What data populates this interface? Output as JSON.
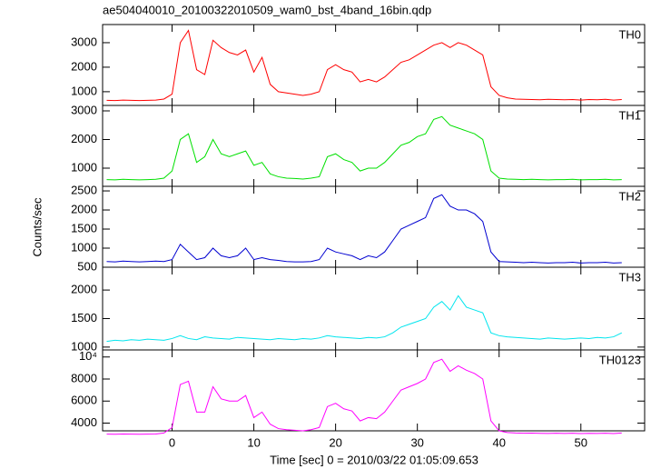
{
  "chart_data": [
    {
      "type": "line",
      "title": "ae504040010_20100322010509_wam0_bst_4band_16bin.qdp",
      "x": [
        -8,
        -7,
        -6,
        -5,
        -4,
        -3,
        -2,
        -1,
        0,
        1,
        2,
        3,
        4,
        5,
        6,
        7,
        8,
        9,
        10,
        11,
        12,
        13,
        14,
        15,
        16,
        17,
        18,
        19,
        20,
        21,
        22,
        23,
        24,
        25,
        26,
        27,
        28,
        29,
        30,
        31,
        32,
        33,
        34,
        35,
        36,
        37,
        38,
        39,
        40,
        41,
        42,
        43,
        44,
        45,
        46,
        47,
        48,
        49,
        50,
        51,
        52,
        53,
        54,
        55
      ],
      "series": [
        {
          "name": "TH0",
          "color": "#ff0000",
          "values": [
            650,
            640,
            660,
            650,
            640,
            650,
            660,
            700,
            900,
            3000,
            3500,
            1900,
            1700,
            3100,
            2800,
            2600,
            2500,
            2700,
            1800,
            2400,
            1300,
            1000,
            950,
            900,
            850,
            900,
            1000,
            1900,
            2100,
            1900,
            1800,
            1400,
            1500,
            1400,
            1600,
            1900,
            2200,
            2300,
            2500,
            2700,
            2900,
            3000,
            2800,
            3000,
            2900,
            2700,
            2500,
            1200,
            850,
            750,
            700,
            690,
            680,
            670,
            690,
            680,
            670,
            680,
            660,
            680,
            670,
            690,
            660,
            680
          ]
        }
      ],
      "xlim": [
        -8.5,
        57.8
      ],
      "ylim": [
        440,
        3740
      ],
      "yticks": [
        1000,
        2000,
        3000
      ]
    },
    {
      "type": "line",
      "x": [
        -8,
        -7,
        -6,
        -5,
        -4,
        -3,
        -2,
        -1,
        0,
        1,
        2,
        3,
        4,
        5,
        6,
        7,
        8,
        9,
        10,
        11,
        12,
        13,
        14,
        15,
        16,
        17,
        18,
        19,
        20,
        21,
        22,
        23,
        24,
        25,
        26,
        27,
        28,
        29,
        30,
        31,
        32,
        33,
        34,
        35,
        36,
        37,
        38,
        39,
        40,
        41,
        42,
        43,
        44,
        45,
        46,
        47,
        48,
        49,
        50,
        51,
        52,
        53,
        54,
        55
      ],
      "series": [
        {
          "name": "TH1",
          "color": "#00e000",
          "values": [
            600,
            590,
            610,
            600,
            590,
            600,
            610,
            650,
            900,
            2000,
            2200,
            1200,
            1400,
            2000,
            1500,
            1400,
            1500,
            1600,
            1100,
            1200,
            800,
            700,
            650,
            640,
            620,
            650,
            700,
            1400,
            1500,
            1300,
            1200,
            900,
            1000,
            1000,
            1200,
            1500,
            1800,
            1900,
            2100,
            2200,
            2700,
            2800,
            2500,
            2400,
            2300,
            2200,
            2000,
            900,
            650,
            620,
            610,
            600,
            610,
            600,
            590,
            600,
            600,
            610,
            590,
            600,
            600,
            610,
            590,
            600
          ]
        }
      ],
      "xlim": [
        -8.5,
        57.8
      ],
      "ylim": [
        365,
        3190
      ],
      "yticks": [
        1000,
        2000,
        3000
      ]
    },
    {
      "type": "line",
      "y_label": "Counts/sec",
      "x": [
        -8,
        -7,
        -6,
        -5,
        -4,
        -3,
        -2,
        -1,
        0,
        1,
        2,
        3,
        4,
        5,
        6,
        7,
        8,
        9,
        10,
        11,
        12,
        13,
        14,
        15,
        16,
        17,
        18,
        19,
        20,
        21,
        22,
        23,
        24,
        25,
        26,
        27,
        28,
        29,
        30,
        31,
        32,
        33,
        34,
        35,
        36,
        37,
        38,
        39,
        40,
        41,
        42,
        43,
        44,
        45,
        46,
        47,
        48,
        49,
        50,
        51,
        52,
        53,
        54,
        55
      ],
      "series": [
        {
          "name": "TH2",
          "color": "#0000d0",
          "values": [
            650,
            640,
            660,
            650,
            640,
            650,
            660,
            650,
            700,
            1100,
            900,
            700,
            750,
            1000,
            800,
            750,
            800,
            1000,
            700,
            750,
            700,
            680,
            650,
            640,
            640,
            650,
            700,
            1000,
            900,
            850,
            800,
            700,
            800,
            750,
            900,
            1200,
            1500,
            1600,
            1700,
            1800,
            2300,
            2400,
            2100,
            2000,
            2000,
            1900,
            1700,
            900,
            650,
            640,
            630,
            620,
            630,
            620,
            610,
            620,
            620,
            630,
            610,
            620,
            620,
            630,
            610,
            620
          ]
        }
      ],
      "xlim": [
        -8.5,
        57.8
      ],
      "ylim": [
        500,
        2620
      ],
      "yticks": [
        500,
        1000,
        1500,
        2000,
        2500
      ]
    },
    {
      "type": "line",
      "x": [
        -8,
        -7,
        -6,
        -5,
        -4,
        -3,
        -2,
        -1,
        0,
        1,
        2,
        3,
        4,
        5,
        6,
        7,
        8,
        9,
        10,
        11,
        12,
        13,
        14,
        15,
        16,
        17,
        18,
        19,
        20,
        21,
        22,
        23,
        24,
        25,
        26,
        27,
        28,
        29,
        30,
        31,
        32,
        33,
        34,
        35,
        36,
        37,
        38,
        39,
        40,
        41,
        42,
        43,
        44,
        45,
        46,
        47,
        48,
        49,
        50,
        51,
        52,
        53,
        54,
        55
      ],
      "series": [
        {
          "name": "TH3",
          "color": "#00e5ee",
          "values": [
            1100,
            1120,
            1110,
            1130,
            1120,
            1140,
            1130,
            1120,
            1150,
            1200,
            1150,
            1130,
            1180,
            1160,
            1150,
            1140,
            1170,
            1160,
            1150,
            1140,
            1130,
            1150,
            1140,
            1130,
            1150,
            1140,
            1160,
            1200,
            1180,
            1170,
            1160,
            1150,
            1170,
            1160,
            1180,
            1250,
            1350,
            1400,
            1450,
            1500,
            1700,
            1800,
            1650,
            1900,
            1700,
            1650,
            1600,
            1250,
            1200,
            1180,
            1170,
            1160,
            1150,
            1140,
            1160,
            1150,
            1140,
            1150,
            1160,
            1150,
            1170,
            1160,
            1180,
            1250
          ]
        }
      ],
      "xlim": [
        -8.5,
        57.8
      ],
      "ylim": [
        950,
        2400
      ],
      "yticks": [
        1000,
        1500,
        2000
      ]
    },
    {
      "type": "line",
      "x_label": "Time [sec] 0 = 2010/03/22 01:05:09.653",
      "x": [
        -8,
        -7,
        -6,
        -5,
        -4,
        -3,
        -2,
        -1,
        0,
        1,
        2,
        3,
        4,
        5,
        6,
        7,
        8,
        9,
        10,
        11,
        12,
        13,
        14,
        15,
        16,
        17,
        18,
        19,
        20,
        21,
        22,
        23,
        24,
        25,
        26,
        27,
        28,
        29,
        30,
        31,
        32,
        33,
        34,
        35,
        36,
        37,
        38,
        39,
        40,
        41,
        42,
        43,
        44,
        45,
        46,
        47,
        48,
        49,
        50,
        51,
        52,
        53,
        54,
        55
      ],
      "series": [
        {
          "name": "TH0123",
          "color": "#ff00ff",
          "values": [
            3000,
            2990,
            3010,
            3000,
            2990,
            3000,
            3010,
            3100,
            3600,
            7500,
            7800,
            5000,
            5000,
            7300,
            6200,
            6000,
            6000,
            6500,
            4500,
            5000,
            3900,
            3500,
            3400,
            3350,
            3300,
            3400,
            3600,
            5500,
            5800,
            5300,
            5100,
            4200,
            4500,
            4400,
            5000,
            6000,
            7000,
            7300,
            7600,
            8000,
            9500,
            9800,
            8700,
            9200,
            8800,
            8500,
            8000,
            4200,
            3300,
            3150,
            3100,
            3080,
            3090,
            3070,
            3060,
            3080,
            3060,
            3080,
            3050,
            3070,
            3060,
            3080,
            3050,
            3100
          ]
        }
      ],
      "xlim": [
        -8.5,
        57.8
      ],
      "ylim": [
        3300,
        10640
      ],
      "yticks": [
        4000,
        6000,
        8000,
        {
          "value": 10000,
          "label": "10⁴"
        }
      ],
      "xticks": [
        0,
        10,
        20,
        30,
        40,
        50
      ]
    }
  ]
}
